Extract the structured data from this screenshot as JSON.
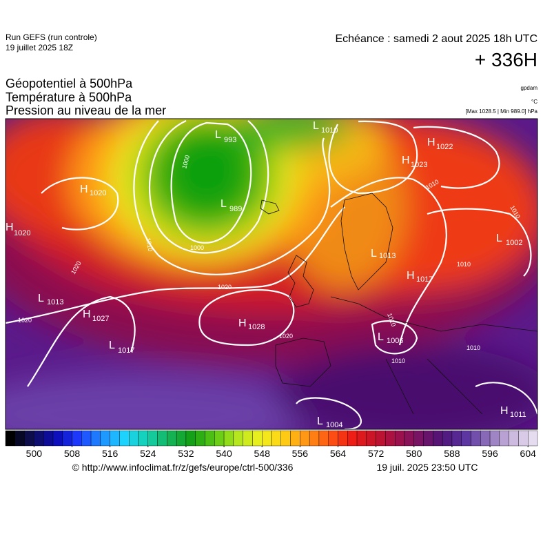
{
  "header": {
    "run": "Run GEFS (run controle)",
    "date": "19 juillet 2025 18Z",
    "valid": "Echéance : samedi 2 aout 2025 18h UTC",
    "lead": "+ 336H",
    "titles": [
      "Géopotentiel à 500hPa",
      "Température à 500hPa",
      "Pression au niveau de la mer"
    ],
    "units": [
      "gpdam",
      "°C",
      "[Max 1028.5 | Min 989.0] hPa"
    ]
  },
  "centers": [
    {
      "kind": "H",
      "value": "1020"
    },
    {
      "kind": "H",
      "value": "1020"
    },
    {
      "kind": "L",
      "value": "993"
    },
    {
      "kind": "L",
      "value": "989"
    },
    {
      "kind": "L",
      "value": "1010"
    },
    {
      "kind": "H",
      "value": "1022"
    },
    {
      "kind": "H",
      "value": "1023"
    },
    {
      "kind": "L",
      "value": "1002"
    },
    {
      "kind": "L",
      "value": "1013"
    },
    {
      "kind": "H",
      "value": "1017"
    },
    {
      "kind": "L",
      "value": "1013"
    },
    {
      "kind": "H",
      "value": "1027"
    },
    {
      "kind": "L",
      "value": "1017"
    },
    {
      "kind": "H",
      "value": "1028"
    },
    {
      "kind": "L",
      "value": "1006"
    },
    {
      "kind": "L",
      "value": "1004"
    },
    {
      "kind": "H",
      "value": "1011"
    }
  ],
  "isobar_labels": [
    "1000",
    "1010",
    "1000",
    "1020",
    "1020",
    "1020",
    "1020",
    "1010",
    "1010",
    "1010",
    "1010",
    "1010",
    "1010"
  ],
  "colorbar": {
    "range": [
      494,
      606
    ],
    "step": 2,
    "ticks": [
      500,
      508,
      516,
      524,
      532,
      540,
      548,
      556,
      564,
      572,
      580,
      588,
      596,
      604
    ],
    "stops": [
      "#000000",
      "#10105a",
      "#0a0ab4",
      "#1e3cff",
      "#1e8cff",
      "#1ed2ff",
      "#14d2b4",
      "#14b45a",
      "#14a014",
      "#5ac814",
      "#b4e61e",
      "#f0f01e",
      "#ffd214",
      "#ff9614",
      "#ff5a14",
      "#f01e14",
      "#c81428",
      "#a0104a",
      "#781464",
      "#501478",
      "#5a32a0",
      "#8c6eb9",
      "#c8b4dc",
      "#e6dcf0"
    ]
  },
  "footer": {
    "source": "© http://www.infoclimat.fr/z/gefs/europe/ctrl-500/336",
    "generated": "19 juil. 2025 23:50 UTC"
  }
}
